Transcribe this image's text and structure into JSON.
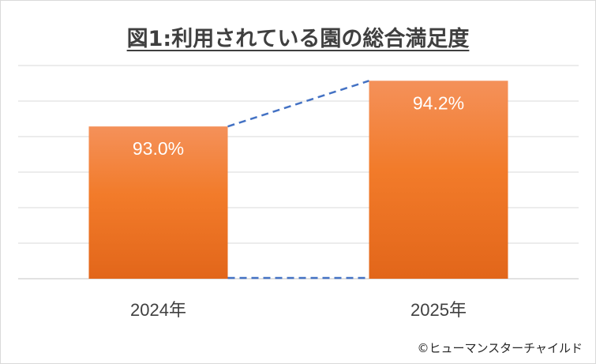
{
  "chart_data": {
    "type": "bar",
    "title": "図1:利用されている園の総合満足度",
    "categories": [
      "2024年",
      "2025年"
    ],
    "values": [
      93.0,
      94.2
    ],
    "value_labels": [
      "93.0%",
      "94.2%"
    ],
    "ylim": [
      89.0,
      94.6
    ],
    "grid": true,
    "legend": "none",
    "bar_color": "#f07c2c",
    "connector_color": "#4472c4",
    "gridline_color": "#d9d9d9"
  },
  "credit": "©ヒューマンスターチャイルド"
}
